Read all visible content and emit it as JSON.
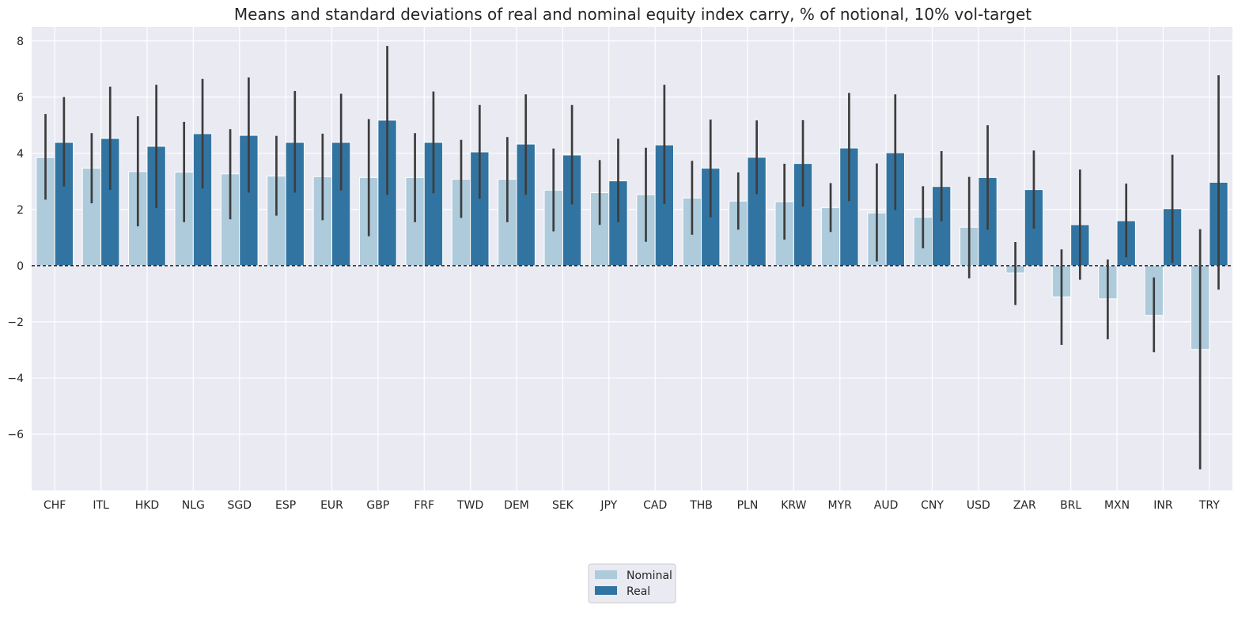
{
  "chart_data": {
    "type": "bar",
    "title": "Means and standard deviations of real and nominal equity index carry, % of notional, 10% vol-target",
    "xlabel": "",
    "ylabel": "",
    "ylim": [
      -8,
      8.5
    ],
    "yticks": [
      -6,
      -4,
      -2,
      0,
      2,
      4,
      6,
      8
    ],
    "ytick_labels": [
      "−6",
      "−4",
      "−2",
      "0",
      "2",
      "4",
      "6",
      "8"
    ],
    "grid": true,
    "zero_line": "dashed",
    "legend_position": "bottom-center",
    "categories": [
      "CHF",
      "ITL",
      "HKD",
      "NLG",
      "SGD",
      "ESP",
      "EUR",
      "GBP",
      "FRF",
      "TWD",
      "DEM",
      "SEK",
      "JPY",
      "CAD",
      "THB",
      "PLN",
      "KRW",
      "MYR",
      "AUD",
      "CNY",
      "USD",
      "ZAR",
      "BRL",
      "MXN",
      "INR",
      "TRY"
    ],
    "series": [
      {
        "name": "Nominal",
        "color": "#aecbdc",
        "values": [
          3.85,
          3.47,
          3.35,
          3.33,
          3.27,
          3.19,
          3.17,
          3.14,
          3.14,
          3.08,
          3.08,
          2.69,
          2.6,
          2.53,
          2.41,
          2.3,
          2.28,
          2.07,
          1.88,
          1.73,
          1.37,
          -0.26,
          -1.11,
          -1.18,
          -1.77,
          -2.98
        ],
        "err_low": [
          2.35,
          2.22,
          1.4,
          1.55,
          1.65,
          1.78,
          1.62,
          1.05,
          1.55,
          1.7,
          1.55,
          1.22,
          1.45,
          0.85,
          1.1,
          1.28,
          0.93,
          1.2,
          0.15,
          0.62,
          -0.45,
          -1.4,
          -2.82,
          -2.62,
          -3.08,
          -7.25
        ],
        "err_high": [
          5.4,
          4.72,
          5.32,
          5.12,
          4.86,
          4.62,
          4.7,
          5.22,
          4.72,
          4.48,
          4.58,
          4.17,
          3.76,
          4.2,
          3.73,
          3.32,
          3.63,
          2.94,
          3.64,
          2.83,
          3.16,
          0.84,
          0.58,
          0.22,
          -0.42,
          1.3
        ]
      },
      {
        "name": "Real",
        "color": "#3274a1",
        "values": [
          4.39,
          4.53,
          4.25,
          4.7,
          4.64,
          4.39,
          4.39,
          5.18,
          4.39,
          4.05,
          4.33,
          3.94,
          3.02,
          4.3,
          3.47,
          3.86,
          3.64,
          4.19,
          4.02,
          2.82,
          3.14,
          2.71,
          1.46,
          1.6,
          2.03,
          2.97
        ],
        "err_low": [
          2.82,
          2.7,
          2.05,
          2.75,
          2.6,
          2.6,
          2.68,
          2.52,
          2.58,
          2.38,
          2.52,
          2.18,
          1.55,
          2.2,
          1.72,
          2.55,
          2.1,
          2.3,
          1.98,
          1.58,
          1.28,
          1.32,
          -0.5,
          0.3,
          0.1,
          -0.85
        ],
        "err_high": [
          6.0,
          6.37,
          6.44,
          6.65,
          6.7,
          6.22,
          6.12,
          7.82,
          6.2,
          5.72,
          6.1,
          5.72,
          4.52,
          6.44,
          5.2,
          5.17,
          5.18,
          6.15,
          6.1,
          4.08,
          5.0,
          4.1,
          3.42,
          2.92,
          3.95,
          6.78
        ]
      }
    ]
  }
}
